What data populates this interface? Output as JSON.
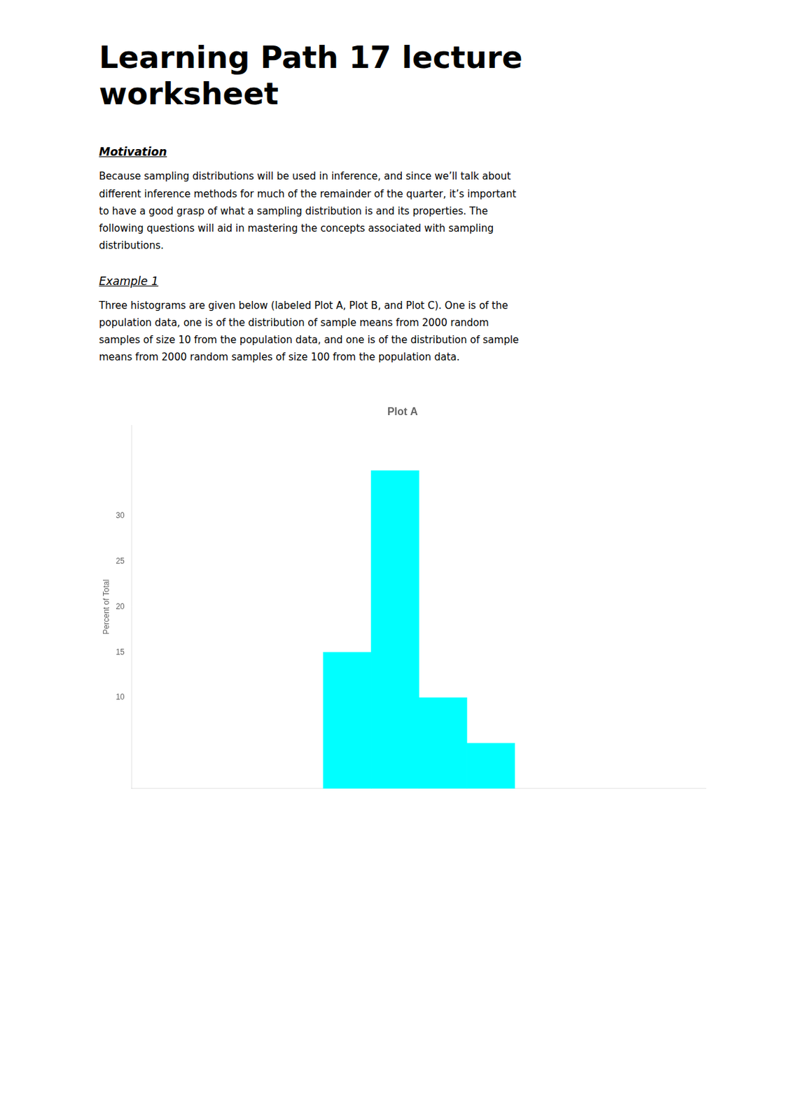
{
  "heading": [
    "Learning Path 17 lecture",
    "worksheet"
  ],
  "sections": [
    {
      "header": "Motivation",
      "lines": [
        "Because sampling distributions will be used in inference, and since we’ll talk about",
        "different inference methods for much of the remainder of the quarter, it’s important",
        "to have a good grasp of what a sampling distribution is and its properties. The",
        "following questions will aid in mastering the concepts associated with sampling",
        "distributions."
      ]
    },
    {
      "header": "Example 1",
      "lines": [
        "Three histograms are given below (labeled Plot A, Plot B, and Plot C). One is of the",
        "population data, one is of the distribution of sample means from 2000 random",
        "samples of size 10 from the population data, and one is of the distribution of sample",
        "means from 2000 random samples of size 100 from the population data."
      ]
    }
  ],
  "chart_data": {
    "type": "histogram",
    "title": "Plot A",
    "y_label": "Percent of Total",
    "bins": [
      4,
      5,
      6,
      7,
      8
    ],
    "values": [
      15,
      35,
      10,
      5
    ],
    "color": "#00FFFF",
    "xlim": [
      0,
      12
    ],
    "ylim": [
      0,
      40
    ],
    "yticks": [
      10,
      15,
      20,
      25,
      30
    ],
    "grid": false,
    "tick_labels": "y"
  }
}
